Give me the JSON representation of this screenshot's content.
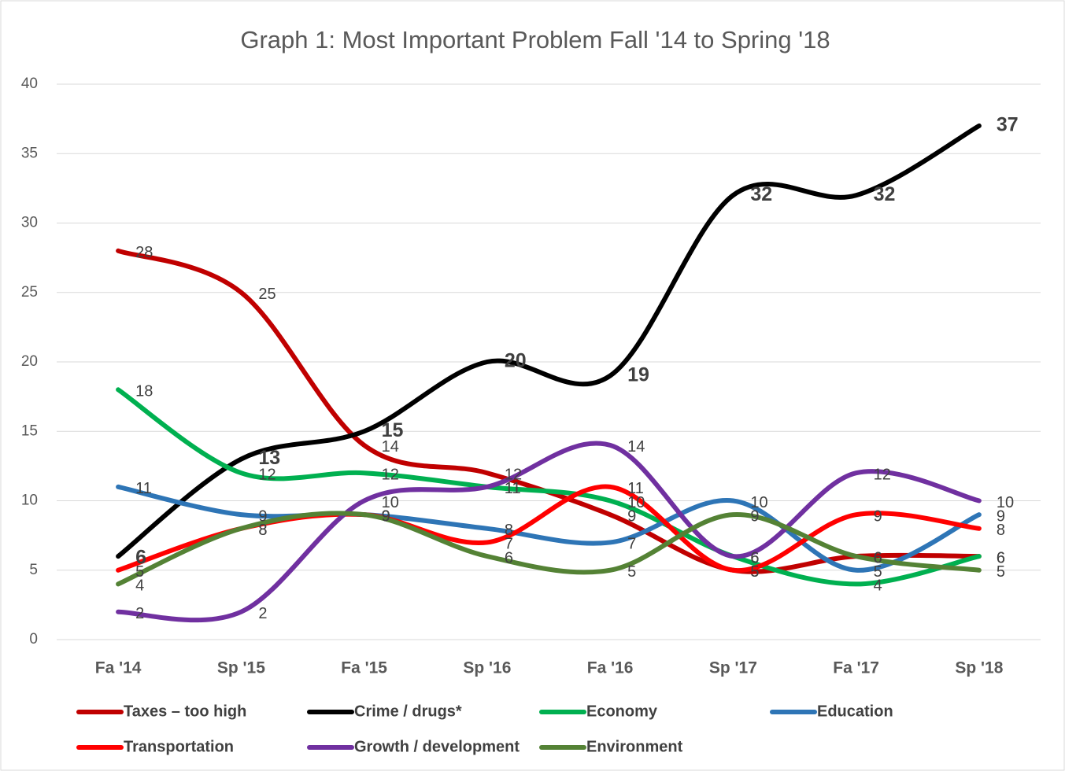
{
  "chart_data": {
    "type": "line",
    "title": "Graph 1: Most Important Problem Fall '14 to Spring '18",
    "categories": [
      "Fa '14",
      "Sp '15",
      "Fa '15",
      "Sp '16",
      "Fa '16",
      "Sp '17",
      "Fa '17",
      "Sp '18"
    ],
    "series": [
      {
        "name": "Taxes – too high",
        "color": "#c00000",
        "values": [
          28,
          25,
          14,
          12,
          9,
          5,
          6,
          6
        ]
      },
      {
        "name": "Crime / drugs*",
        "color": "#000000",
        "values": [
          6,
          13,
          15,
          20,
          19,
          32,
          32,
          37
        ]
      },
      {
        "name": "Economy",
        "color": "#00b050",
        "values": [
          18,
          12,
          12,
          11,
          10,
          6,
          4,
          6
        ]
      },
      {
        "name": "Education",
        "color": "#2e75b6",
        "values": [
          11,
          9,
          9,
          8,
          7,
          10,
          5,
          9
        ]
      },
      {
        "name": "Transportation",
        "color": "#ff0000",
        "values": [
          5,
          8,
          9,
          7,
          11,
          5,
          9,
          8
        ]
      },
      {
        "name": "Growth / development",
        "color": "#7030a0",
        "values": [
          2,
          2,
          10,
          11,
          14,
          6,
          12,
          10
        ]
      },
      {
        "name": "Environment",
        "color": "#548235",
        "values": [
          4,
          8,
          9,
          6,
          5,
          9,
          6,
          5
        ]
      }
    ],
    "ylim": [
      0,
      40
    ],
    "yticks": [
      0,
      5,
      10,
      15,
      20,
      25,
      30,
      35,
      40
    ],
    "grid": true,
    "smooth": true,
    "legend": "bottom"
  }
}
